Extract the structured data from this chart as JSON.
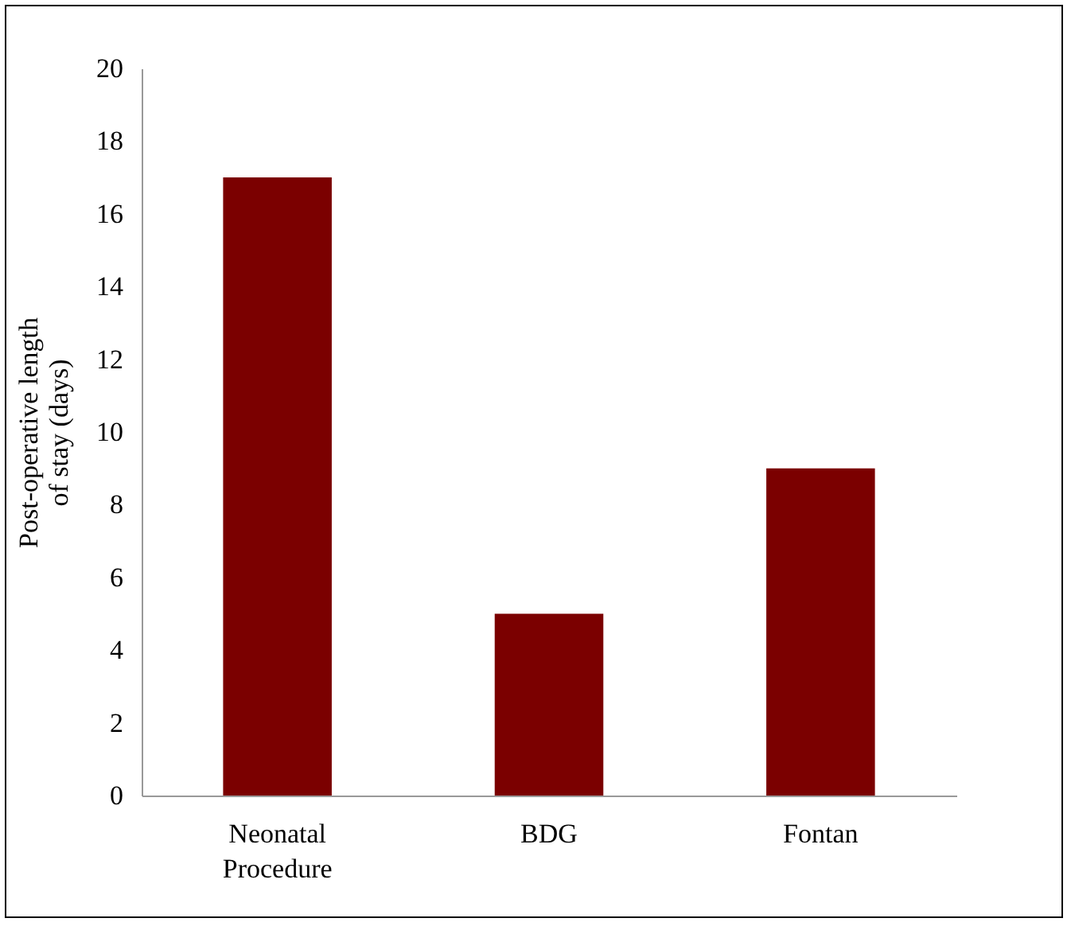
{
  "chart_data": {
    "type": "bar",
    "ylabel": "Post-operative length of stay (days)",
    "categories": [
      "Neonatal Procedure",
      "BDG",
      "Fontan"
    ],
    "values": [
      17,
      5,
      9
    ],
    "color": "#7b0000",
    "ylim": [
      0,
      20
    ],
    "yticks": [
      0,
      2,
      4,
      6,
      8,
      10,
      12,
      14,
      16,
      18,
      20
    ],
    "grid": false
  }
}
